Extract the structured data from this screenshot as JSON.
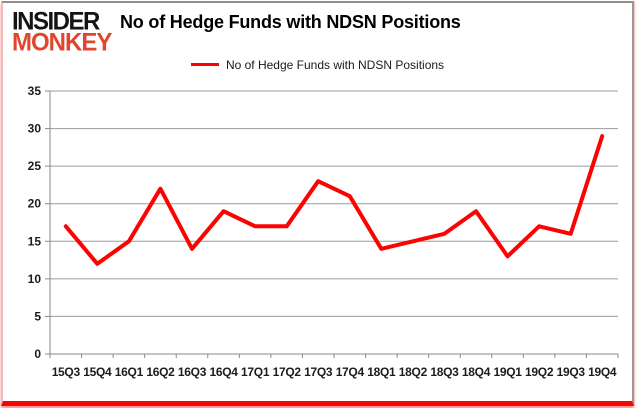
{
  "logo": {
    "line1": "INSIDER",
    "line2": "MONKEY"
  },
  "title": "No of Hedge Funds with NDSN Positions",
  "legend": {
    "label": "No of Hedge Funds with NDSN Positions",
    "line_color": "#fe0101"
  },
  "chart_data": {
    "type": "line",
    "title": "No of Hedge Funds with NDSN Positions",
    "categories": [
      "15Q3",
      "15Q4",
      "16Q1",
      "16Q2",
      "16Q3",
      "16Q4",
      "17Q1",
      "17Q2",
      "17Q3",
      "17Q4",
      "18Q1",
      "18Q2",
      "18Q3",
      "18Q4",
      "19Q1",
      "19Q2",
      "19Q3",
      "19Q4"
    ],
    "series": [
      {
        "name": "No of Hedge Funds with NDSN Positions",
        "values": [
          17,
          12,
          15,
          22,
          14,
          19,
          17,
          17,
          23,
          21,
          14,
          15,
          16,
          19,
          13,
          17,
          16,
          29
        ]
      }
    ],
    "xlabel": "",
    "ylabel": "",
    "ylim": [
      0,
      35
    ],
    "ytick_step": 5,
    "grid": true,
    "legend_position": "top",
    "line_color": "#fe0101",
    "gridline_color": "#9c9c9c",
    "axis_color": "#8a8a8a",
    "label_color": "#1c1c1c"
  }
}
